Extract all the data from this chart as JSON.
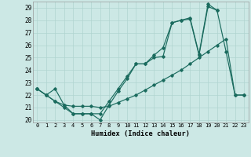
{
  "xlabel": "Humidex (Indice chaleur)",
  "xlim": [
    -0.5,
    23.5
  ],
  "ylim": [
    19.8,
    29.5
  ],
  "yticks": [
    20,
    21,
    22,
    23,
    24,
    25,
    26,
    27,
    28,
    29
  ],
  "xticks": [
    0,
    1,
    2,
    3,
    4,
    5,
    6,
    7,
    8,
    9,
    10,
    11,
    12,
    13,
    14,
    15,
    16,
    17,
    18,
    19,
    20,
    21,
    22,
    23
  ],
  "bg_color": "#cce8e5",
  "grid_color": "#b0d4d0",
  "line_color": "#1a6b5e",
  "series1_x": [
    0,
    1,
    2,
    3,
    4,
    5,
    6,
    7,
    8,
    9,
    10,
    11,
    12,
    13,
    14,
    15,
    16,
    17,
    18,
    19,
    20,
    21,
    22,
    23
  ],
  "series1_y": [
    22.5,
    22.0,
    21.5,
    21.0,
    20.5,
    20.5,
    20.5,
    20.0,
    21.2,
    22.3,
    23.3,
    24.5,
    24.5,
    25.0,
    25.1,
    27.8,
    28.0,
    28.1,
    25.2,
    29.1,
    28.8,
    25.5,
    22.0,
    22.0
  ],
  "series2_x": [
    0,
    1,
    2,
    3,
    4,
    5,
    6,
    7,
    8,
    9,
    10,
    11,
    12,
    13,
    14,
    15,
    16,
    17,
    18,
    19,
    20,
    21,
    22,
    23
  ],
  "series2_y": [
    22.5,
    22.0,
    22.5,
    21.2,
    20.5,
    20.5,
    20.5,
    20.5,
    21.5,
    22.5,
    23.5,
    24.5,
    24.5,
    25.2,
    25.8,
    27.8,
    28.0,
    28.2,
    25.3,
    29.3,
    28.8,
    null,
    null,
    null
  ],
  "series3_x": [
    0,
    1,
    2,
    3,
    4,
    5,
    6,
    7,
    8,
    9,
    10,
    11,
    12,
    13,
    14,
    15,
    16,
    17,
    18,
    19,
    20,
    21,
    22,
    23
  ],
  "series3_y": [
    22.5,
    22.0,
    21.5,
    21.2,
    21.1,
    21.1,
    21.1,
    21.0,
    21.1,
    21.4,
    21.7,
    22.0,
    22.4,
    22.8,
    23.2,
    23.6,
    24.0,
    24.5,
    25.0,
    25.5,
    26.0,
    26.5,
    22.0,
    22.0
  ]
}
